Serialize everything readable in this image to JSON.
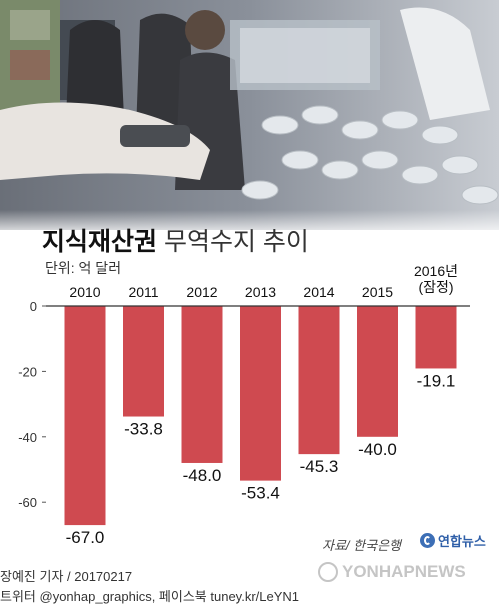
{
  "title_main": "지식재산권",
  "title_rest": " 무역수지 추이",
  "unit": "단위: 억 달러",
  "source": "자료/ 한국은행",
  "logo": "연합뉴스",
  "credit_line1": "장예진 기자 / 20170217",
  "credit_line2": "트위터 @yonhap_graphics, 페이스북 tuney.kr/LeYN1",
  "watermark": "YONHAPNEWS",
  "colors": {
    "bar": "#cf4a50",
    "axis": "#333333",
    "text": "#111111"
  },
  "chart_data": {
    "type": "bar",
    "categories": [
      "2010",
      "2011",
      "2012",
      "2013",
      "2014",
      "2015",
      "2016년\n(잠정)"
    ],
    "values": [
      -67.0,
      -33.8,
      -48.0,
      -53.4,
      -45.3,
      -40.0,
      -19.1
    ],
    "value_labels": [
      "-67.0",
      "-33.8",
      "-48.0",
      "-53.4",
      "-45.3",
      "-40.0",
      "-19.1"
    ],
    "y_ticks": [
      0,
      -20,
      -40,
      -60
    ],
    "ylim": [
      -70,
      0
    ],
    "title": "지식재산권 무역수지 추이",
    "ylabel": "단위: 억 달러",
    "grid": false
  }
}
